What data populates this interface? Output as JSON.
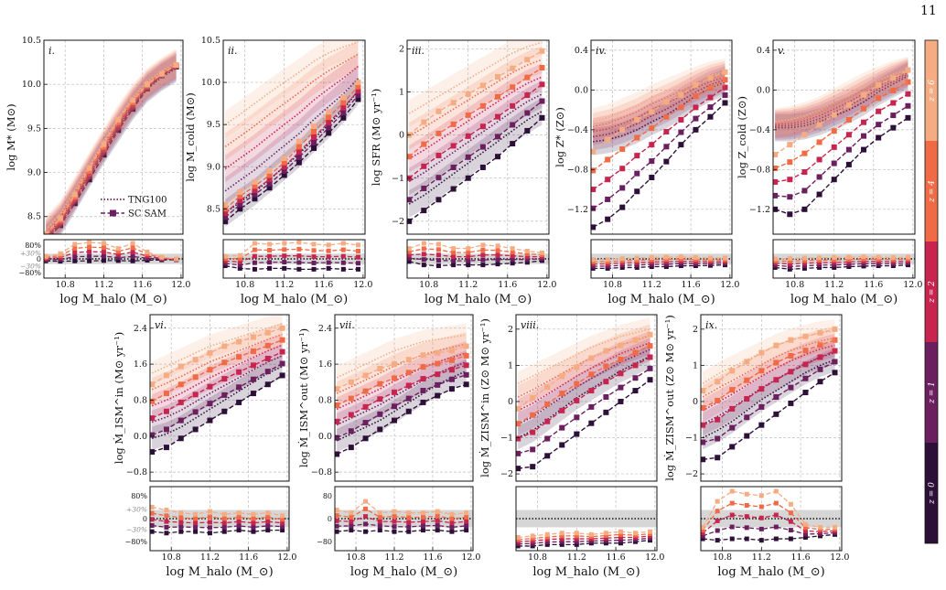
{
  "page_number": "11",
  "colors": {
    "z0": "#2d1038",
    "z1": "#6b1f5e",
    "z2": "#c7244f",
    "z4": "#ef6a45",
    "z6": "#f5ac83",
    "band": "#d6d6d6",
    "grid": "#bdbdbd"
  },
  "redshifts": [
    "z = 0",
    "z = 1",
    "z = 2",
    "z = 4",
    "z = 6"
  ],
  "colorbar_labels": [
    "z = 6",
    "z = 4",
    "z = 2",
    "z = 1",
    "z = 0"
  ],
  "legend": {
    "tng": "TNG100",
    "sam": "SC SAM"
  },
  "xlabel": "log  M_halo (M_⊙)",
  "x_ticks": [
    "10.8",
    "11.2",
    "11.6",
    "12.0"
  ],
  "chart_data": [
    {
      "type": "line",
      "panel": "i.",
      "ylabel": "log M* (M⊙)",
      "ylim": [
        8.3,
        10.5
      ],
      "yticks": [
        "8.5",
        "9.0",
        "9.5",
        "10.0",
        "10.5"
      ],
      "ratio_ticks": [
        "80%",
        "0",
        "−80%"
      ],
      "ratio_extra": [
        "+30%",
        "−30%"
      ],
      "x": [
        10.6,
        10.75,
        10.9,
        11.05,
        11.2,
        11.35,
        11.5,
        11.65,
        11.8,
        11.95
      ],
      "sam_low": [
        8.22,
        8.4,
        8.65,
        8.92,
        9.2,
        9.48,
        9.72,
        9.95,
        10.1,
        10.2
      ],
      "sam_high": [
        8.3,
        8.48,
        8.75,
        9.05,
        9.32,
        9.6,
        9.82,
        10.0,
        10.12,
        10.22
      ],
      "tng_low": [
        8.25,
        8.43,
        8.7,
        8.98,
        9.25,
        9.5,
        9.75,
        9.95,
        10.08,
        10.18
      ],
      "tng_high": [
        8.35,
        8.53,
        8.8,
        9.08,
        9.35,
        9.62,
        9.85,
        10.03,
        10.15,
        10.25
      ],
      "ratio_high": [
        0.15,
        0.3,
        0.85,
        0.95,
        0.9,
        0.6,
        0.9,
        0.4,
        0.1,
        0.0
      ],
      "ratio_low": [
        -0.12,
        -0.14,
        -0.12,
        -0.12,
        -0.1,
        -0.1,
        -0.12,
        -0.08,
        -0.06,
        -0.05
      ],
      "legend": true
    },
    {
      "type": "line",
      "panel": "ii.",
      "ylabel": "log M_cold (M⊙)",
      "ylim": [
        8.2,
        10.5
      ],
      "yticks": [
        "8.5",
        "9.0",
        "9.5",
        "10.0",
        "10.5"
      ],
      "ratio_ticks": [],
      "ratio_extra": [],
      "x": [
        10.6,
        10.75,
        10.9,
        11.05,
        11.2,
        11.35,
        11.5,
        11.65,
        11.8,
        11.95
      ],
      "sam_low": [
        8.35,
        8.5,
        8.62,
        8.75,
        8.9,
        9.05,
        9.22,
        9.4,
        9.58,
        9.8
      ],
      "sam_high": [
        8.55,
        8.7,
        8.82,
        8.95,
        9.1,
        9.3,
        9.48,
        9.65,
        9.82,
        10.0
      ],
      "tng_low": [
        8.45,
        8.58,
        8.7,
        8.85,
        9.0,
        9.15,
        9.33,
        9.5,
        9.68,
        9.9
      ],
      "tng_high": [
        9.5,
        9.62,
        9.75,
        9.88,
        10.0,
        10.12,
        10.25,
        10.35,
        10.42,
        10.48
      ],
      "ratio_high": [
        0.15,
        0.2,
        0.9,
        0.85,
        0.9,
        0.95,
        0.85,
        0.8,
        0.9,
        0.8
      ],
      "ratio_low": [
        -0.4,
        -0.55,
        -0.6,
        -0.55,
        -0.55,
        -0.6,
        -0.6,
        -0.55,
        -0.6,
        -0.6
      ],
      "legend": false
    },
    {
      "type": "line",
      "panel": "iii.",
      "ylabel": "log SFR (M⊙ yr⁻¹)",
      "ylim": [
        -2.3,
        2.2
      ],
      "yticks": [
        "−2",
        "−1",
        "0",
        "1",
        "2"
      ],
      "ratio_ticks": [],
      "ratio_extra": [],
      "x": [
        10.6,
        10.75,
        10.9,
        11.05,
        11.2,
        11.35,
        11.5,
        11.65,
        11.8,
        11.95
      ],
      "sam_low": [
        -2.0,
        -1.75,
        -1.5,
        -1.25,
        -1.0,
        -0.75,
        -0.5,
        -0.2,
        0.1,
        0.4
      ],
      "sam_high": [
        0.0,
        0.3,
        0.55,
        0.75,
        0.95,
        1.15,
        1.35,
        1.55,
        1.75,
        1.95
      ],
      "tng_low": [
        -1.6,
        -1.4,
        -1.15,
        -0.9,
        -0.65,
        -0.4,
        -0.15,
        0.1,
        0.35,
        0.55
      ],
      "tng_high": [
        0.5,
        0.7,
        0.9,
        1.1,
        1.3,
        1.5,
        1.7,
        1.9,
        2.05,
        2.15
      ],
      "ratio_high": [
        0.6,
        0.9,
        0.85,
        0.6,
        0.6,
        0.8,
        0.75,
        0.6,
        0.45,
        0.35
      ],
      "ratio_low": [
        -0.15,
        -0.35,
        -0.4,
        -0.35,
        -0.35,
        -0.35,
        -0.3,
        -0.25,
        -0.2,
        -0.1
      ],
      "legend": false
    },
    {
      "type": "line",
      "panel": "iv.",
      "ylabel": "log Z* (Z⊙)",
      "ylim": [
        -1.45,
        0.5
      ],
      "yticks": [
        "−1.2",
        "−0.8",
        "−0.4",
        "0.0",
        "0.4"
      ],
      "ratio_ticks": [],
      "ratio_extra": [],
      "x": [
        10.6,
        10.75,
        10.9,
        11.05,
        11.2,
        11.35,
        11.5,
        11.65,
        11.8,
        11.95
      ],
      "sam_low": [
        -1.38,
        -1.3,
        -1.18,
        -1.02,
        -0.88,
        -0.72,
        -0.55,
        -0.4,
        -0.27,
        -0.13
      ],
      "sam_high": [
        -0.62,
        -0.5,
        -0.4,
        -0.3,
        -0.22,
        -0.12,
        -0.05,
        0.05,
        0.12,
        0.18
      ],
      "tng_low": [
        -0.52,
        -0.5,
        -0.46,
        -0.4,
        -0.32,
        -0.25,
        -0.16,
        -0.06,
        0.02,
        0.08
      ],
      "tng_high": [
        -0.32,
        -0.28,
        -0.22,
        -0.16,
        -0.08,
        -0.02,
        0.04,
        0.1,
        0.15,
        0.18
      ],
      "ratio_high": [
        -0.05,
        -0.04,
        0.02,
        0.05,
        0.08,
        0.1,
        0.12,
        0.08,
        0.05,
        0.05
      ],
      "ratio_low": [
        -0.55,
        -0.55,
        -0.5,
        -0.5,
        -0.45,
        -0.45,
        -0.4,
        -0.4,
        -0.38,
        -0.35
      ],
      "legend": false
    },
    {
      "type": "line",
      "panel": "v.",
      "ylabel": "log Z_cold (Z⊙)",
      "ylim": [
        -1.45,
        0.5
      ],
      "yticks": [
        "−1.2",
        "−0.8",
        "−0.4",
        "0.0",
        "0.4"
      ],
      "ratio_ticks": [],
      "ratio_extra": [],
      "x": [
        10.6,
        10.75,
        10.9,
        11.05,
        11.2,
        11.35,
        11.5,
        11.65,
        11.8,
        11.95
      ],
      "sam_low": [
        -1.2,
        -1.25,
        -1.2,
        -1.05,
        -0.9,
        -0.75,
        -0.6,
        -0.48,
        -0.38,
        -0.28
      ],
      "sam_high": [
        -0.65,
        -0.55,
        -0.45,
        -0.35,
        -0.25,
        -0.15,
        -0.05,
        0.05,
        0.12,
        0.2
      ],
      "tng_low": [
        -0.38,
        -0.38,
        -0.36,
        -0.32,
        -0.26,
        -0.2,
        -0.12,
        -0.02,
        0.06,
        0.14
      ],
      "tng_high": [
        -0.32,
        -0.3,
        -0.26,
        -0.2,
        -0.12,
        -0.04,
        0.04,
        0.1,
        0.16,
        0.2
      ],
      "ratio_high": [
        0.0,
        0.02,
        0.05,
        0.06,
        0.08,
        0.1,
        0.12,
        0.1,
        0.08,
        0.1
      ],
      "ratio_low": [
        -0.5,
        -0.6,
        -0.55,
        -0.5,
        -0.5,
        -0.45,
        -0.42,
        -0.4,
        -0.4,
        -0.35
      ],
      "legend": false
    },
    {
      "type": "line",
      "panel": "vi.",
      "ylabel": "log Ṁ_ISM^in (M⊙ yr⁻¹)",
      "ylim": [
        -1.0,
        2.7
      ],
      "yticks": [
        "−0.8",
        "0.0",
        "0.8",
        "1.6",
        "2.4"
      ],
      "ratio_ticks": [
        "80%",
        "0",
        "−80%"
      ],
      "ratio_extra": [
        "+30%",
        "−30%"
      ],
      "x": [
        10.6,
        10.75,
        10.9,
        11.05,
        11.2,
        11.35,
        11.5,
        11.65,
        11.8,
        11.95
      ],
      "sam_low": [
        -0.35,
        -0.25,
        -0.05,
        0.15,
        0.35,
        0.55,
        0.75,
        0.95,
        1.15,
        1.35
      ],
      "sam_high": [
        1.15,
        1.35,
        1.55,
        1.7,
        1.85,
        2.0,
        2.1,
        2.2,
        2.3,
        2.4
      ],
      "tng_low": [
        -0.05,
        0.05,
        0.2,
        0.4,
        0.6,
        0.8,
        1.0,
        1.2,
        1.4,
        1.55
      ],
      "tng_high": [
        1.4,
        1.55,
        1.7,
        1.85,
        2.0,
        2.1,
        2.2,
        2.3,
        2.4,
        2.5
      ],
      "ratio_high": [
        0.4,
        0.3,
        0.2,
        0.15,
        0.25,
        0.15,
        0.2,
        0.15,
        0.2,
        0.1
      ],
      "ratio_low": [
        -0.45,
        -0.5,
        -0.45,
        -0.45,
        -0.5,
        -0.45,
        -0.4,
        -0.45,
        -0.4,
        -0.4
      ],
      "legend": false
    },
    {
      "type": "line",
      "panel": "vii.",
      "ylabel": "log Ṁ_ISM^out (M⊙ yr⁻¹)",
      "ylim": [
        -1.0,
        2.7
      ],
      "yticks": [
        "−0.8",
        "0.0",
        "0.8",
        "1.6",
        "2.4"
      ],
      "ratio_ticks": [
        "80",
        "0",
        "−80"
      ],
      "ratio_extra": [],
      "x": [
        10.6,
        10.75,
        10.9,
        11.05,
        11.2,
        11.35,
        11.5,
        11.65,
        11.8,
        11.95
      ],
      "sam_low": [
        -0.4,
        -0.25,
        -0.05,
        0.15,
        0.35,
        0.55,
        0.75,
        0.9,
        1.05,
        1.15
      ],
      "sam_high": [
        1.05,
        1.2,
        1.35,
        1.5,
        1.6,
        1.7,
        1.8,
        1.85,
        1.9,
        2.0
      ],
      "tng_low": [
        -0.1,
        0.05,
        0.2,
        0.35,
        0.55,
        0.75,
        0.95,
        1.15,
        1.3,
        1.45
      ],
      "tng_high": [
        1.3,
        1.45,
        1.6,
        1.75,
        1.9,
        2.0,
        2.1,
        2.15,
        2.2,
        2.25
      ],
      "ratio_high": [
        0.3,
        0.2,
        0.6,
        0.2,
        0.25,
        0.2,
        0.2,
        0.25,
        0.15,
        0.2
      ],
      "ratio_low": [
        -0.45,
        -0.4,
        -0.45,
        -0.4,
        -0.45,
        -0.45,
        -0.4,
        -0.4,
        -0.45,
        -0.4
      ],
      "legend": false
    },
    {
      "type": "line",
      "panel": "viii.",
      "ylabel": "log Ṁ_ZISM^in (Z⊙ M⊙ yr⁻¹)",
      "ylim": [
        -2.2,
        2.4
      ],
      "yticks": [
        "−2",
        "−1",
        "0",
        "1",
        "2"
      ],
      "ratio_ticks": [],
      "ratio_extra": [],
      "x": [
        10.6,
        10.75,
        10.9,
        11.05,
        11.2,
        11.35,
        11.5,
        11.65,
        11.8,
        11.95
      ],
      "sam_low": [
        -1.85,
        -1.8,
        -1.5,
        -1.2,
        -0.9,
        -0.6,
        -0.3,
        0.0,
        0.3,
        0.6
      ],
      "sam_high": [
        -0.2,
        0.1,
        0.4,
        0.7,
        0.95,
        1.2,
        1.4,
        1.55,
        1.7,
        1.85
      ],
      "tng_low": [
        -1.0,
        -0.8,
        -0.5,
        -0.2,
        0.1,
        0.35,
        0.6,
        0.85,
        1.05,
        1.25
      ],
      "tng_high": [
        0.5,
        0.7,
        0.9,
        1.1,
        1.3,
        1.5,
        1.65,
        1.8,
        1.9,
        2.0
      ],
      "ratio_high": [
        -0.65,
        -0.6,
        -0.55,
        -0.5,
        -0.5,
        -0.55,
        -0.5,
        -0.45,
        -0.5,
        -0.45
      ],
      "ratio_low": [
        -0.95,
        -0.95,
        -0.9,
        -0.9,
        -0.9,
        -0.85,
        -0.85,
        -0.85,
        -0.8,
        -0.75
      ],
      "legend": false
    },
    {
      "type": "line",
      "panel": "ix.",
      "ylabel": "log Ṁ_ZISM^out (Z⊙ M⊙ yr⁻¹)",
      "ylim": [
        -2.2,
        2.4
      ],
      "yticks": [
        "−2",
        "−1",
        "0",
        "1",
        "2"
      ],
      "ratio_ticks": [],
      "ratio_extra": [],
      "x": [
        10.6,
        10.75,
        10.9,
        11.05,
        11.2,
        11.35,
        11.5,
        11.65,
        11.8,
        11.95
      ],
      "sam_low": [
        -1.6,
        -1.55,
        -1.25,
        -0.95,
        -0.65,
        -0.35,
        -0.05,
        0.25,
        0.55,
        0.8
      ],
      "sam_high": [
        0.3,
        0.55,
        0.85,
        1.1,
        1.35,
        1.55,
        1.7,
        1.8,
        1.9,
        2.0
      ],
      "tng_low": [
        -1.0,
        -0.8,
        -0.55,
        -0.25,
        0.05,
        0.3,
        0.55,
        0.8,
        1.0,
        1.15
      ],
      "tng_high": [
        0.5,
        0.75,
        0.95,
        1.15,
        1.35,
        1.55,
        1.7,
        1.8,
        1.9,
        1.95
      ],
      "ratio_high": [
        -0.3,
        0.6,
        0.95,
        0.85,
        0.8,
        0.95,
        0.5,
        -0.2,
        -0.3,
        -0.3
      ],
      "ratio_low": [
        -0.7,
        -0.75,
        -0.7,
        -0.7,
        -0.75,
        -0.7,
        -0.7,
        -0.65,
        -0.6,
        -0.55
      ],
      "legend": false
    }
  ]
}
